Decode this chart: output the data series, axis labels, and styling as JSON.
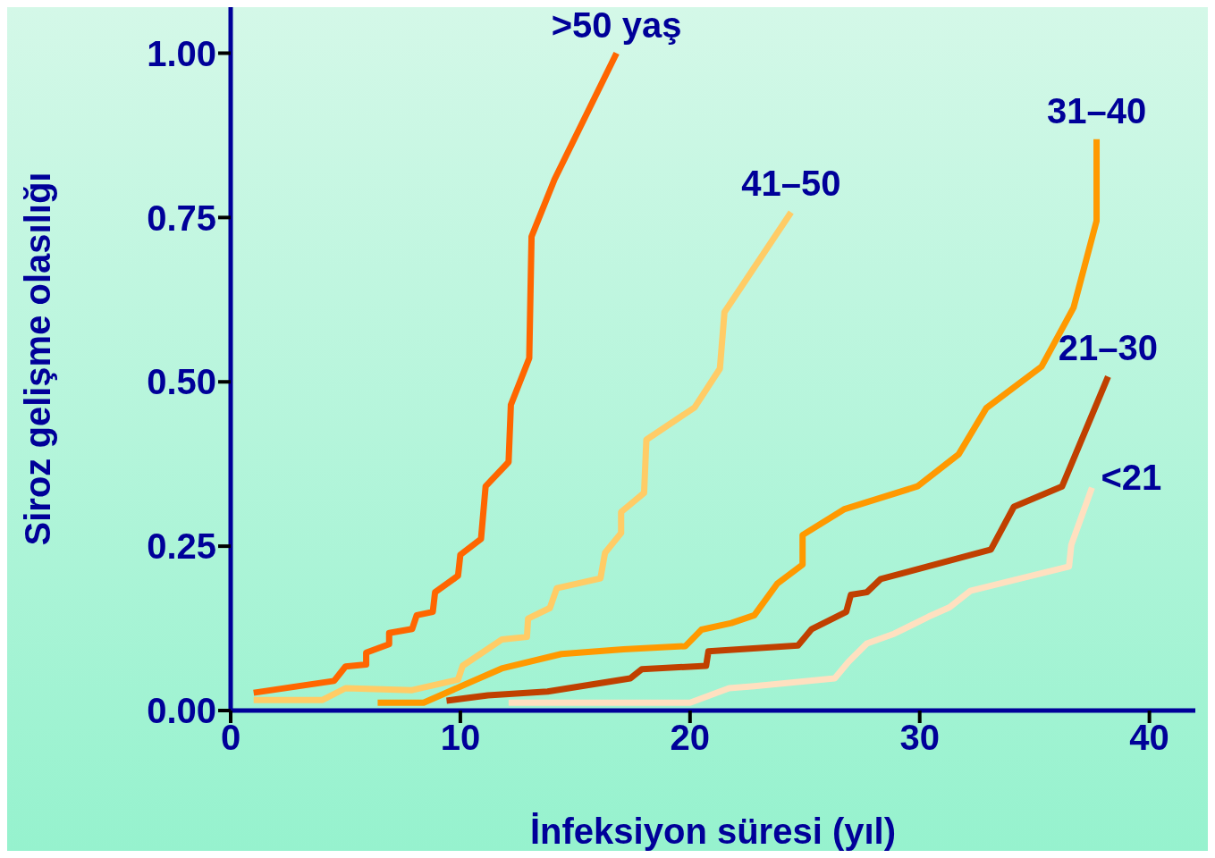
{
  "chart_data": {
    "type": "line",
    "xlabel": "İnfeksiyon süresi (yıl)",
    "ylabel": "Siroz gelişme olasılığı",
    "xlim": [
      0,
      42
    ],
    "xticks": [
      0,
      10,
      20,
      30,
      40
    ],
    "ylim": [
      0,
      1.07
    ],
    "yticks": [
      {
        "value": 0,
        "label": "0.00"
      },
      {
        "value": 0.25,
        "label": "0.25"
      },
      {
        "value": 0.5,
        "label": "0.50"
      },
      {
        "value": 0.75,
        "label": "0.75"
      },
      {
        "value": 1,
        "label": "1.00"
      }
    ],
    "grid": false,
    "legend": false,
    "marker": "none",
    "line_style": "solid",
    "series": [
      {
        "name": ">50 yaş",
        "color": "#ff6600",
        "x": [
          1.0,
          4.5,
          5.0,
          5.9,
          5.9,
          6.9,
          6.9,
          7.9,
          8.1,
          8.8,
          8.9,
          9.9,
          10.0,
          10.9,
          11.1,
          12.1,
          12.2,
          13.0,
          13.1,
          14.1,
          16.8
        ],
        "values": [
          0.027,
          0.045,
          0.067,
          0.07,
          0.088,
          0.101,
          0.118,
          0.124,
          0.145,
          0.15,
          0.18,
          0.205,
          0.237,
          0.261,
          0.341,
          0.378,
          0.465,
          0.536,
          0.721,
          0.808,
          1.0
        ]
      },
      {
        "name": "41–50",
        "color": "#ffcc66",
        "x": [
          1.0,
          4.0,
          5.0,
          7.9,
          9.9,
          10.1,
          11.8,
          12.9,
          12.95,
          13.9,
          14.2,
          16.1,
          16.3,
          17.0,
          17.0,
          18.0,
          18.1,
          20.2,
          21.3,
          21.5,
          24.4
        ],
        "values": [
          0.016,
          0.016,
          0.034,
          0.031,
          0.047,
          0.068,
          0.108,
          0.112,
          0.14,
          0.156,
          0.186,
          0.201,
          0.24,
          0.27,
          0.302,
          0.331,
          0.412,
          0.461,
          0.52,
          0.606,
          0.758
        ]
      },
      {
        "name": "31–40",
        "color": "#ff9900",
        "x": [
          6.4,
          8.4,
          11.8,
          14.4,
          17.1,
          19.8,
          20.5,
          21.8,
          22.8,
          23.8,
          24.9,
          24.9,
          26.7,
          29.9,
          31.7,
          32.9,
          35.3,
          36.7,
          37.7,
          37.7
        ],
        "values": [
          0.012,
          0.012,
          0.064,
          0.086,
          0.093,
          0.098,
          0.123,
          0.133,
          0.145,
          0.193,
          0.222,
          0.267,
          0.306,
          0.341,
          0.39,
          0.46,
          0.523,
          0.613,
          0.745,
          0.869
        ]
      },
      {
        "name": "21–30",
        "color": "#c04000",
        "x": [
          9.4,
          11.2,
          13.8,
          17.4,
          17.9,
          20.7,
          20.8,
          24.7,
          25.3,
          26.8,
          27.0,
          27.7,
          28.3,
          33.1,
          34.1,
          36.2,
          38.2
        ],
        "values": [
          0.015,
          0.023,
          0.029,
          0.049,
          0.063,
          0.068,
          0.09,
          0.099,
          0.124,
          0.15,
          0.176,
          0.18,
          0.2,
          0.245,
          0.31,
          0.341,
          0.508
        ]
      },
      {
        "name": "<21",
        "color": "#ffe0c0",
        "x": [
          12.1,
          20.0,
          21.7,
          22.8,
          26.3,
          26.9,
          27.7,
          28.9,
          30.4,
          31.3,
          32.2,
          36.5,
          36.6,
          37.5
        ],
        "values": [
          0.012,
          0.012,
          0.034,
          0.037,
          0.049,
          0.074,
          0.102,
          0.117,
          0.143,
          0.157,
          0.182,
          0.219,
          0.252,
          0.339
        ]
      }
    ]
  }
}
